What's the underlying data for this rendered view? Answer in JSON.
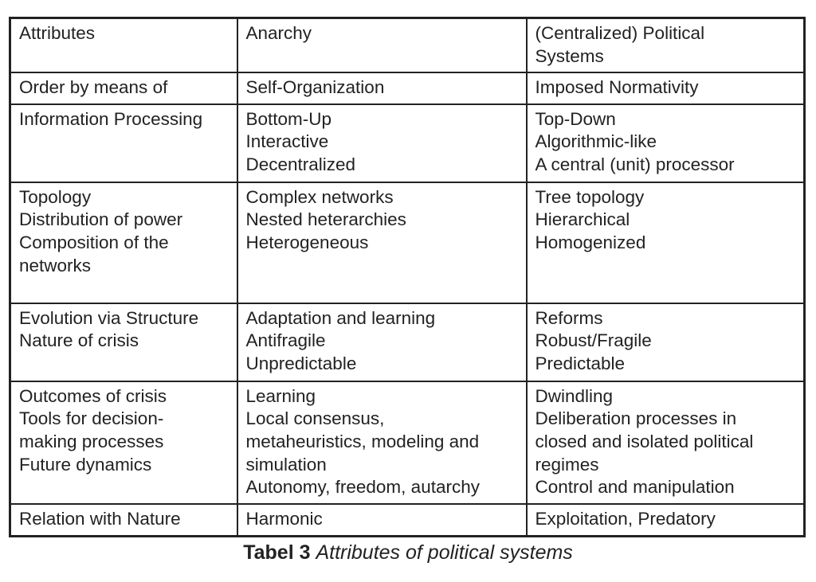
{
  "table": {
    "rows": [
      {
        "cells": [
          [
            "Attributes"
          ],
          [
            "Anarchy"
          ],
          [
            "(Centralized) Political",
            "Systems"
          ]
        ]
      },
      {
        "cells": [
          [
            "Order by means of"
          ],
          [
            "Self-Organization"
          ],
          [
            "Imposed Normativity"
          ]
        ]
      },
      {
        "cells": [
          [
            "Information Processing"
          ],
          [
            "Bottom-Up",
            "Interactive",
            "Decentralized"
          ],
          [
            "Top-Down",
            "Algorithmic-like",
            "A central (unit) processor"
          ]
        ]
      },
      {
        "cells": [
          [
            "Topology",
            "Distribution of power",
            "Composition of the",
            "networks"
          ],
          [
            "Complex networks",
            "Nested heterarchies",
            "Heterogeneous"
          ],
          [
            "Tree topology",
            "Hierarchical",
            "Homogenized"
          ]
        ]
      },
      {
        "cells": [
          [
            "Evolution via Structure",
            "Nature of crisis"
          ],
          [
            "Adaptation and learning",
            "Antifragile",
            "Unpredictable"
          ],
          [
            "Reforms",
            "Robust/Fragile",
            "Predictable"
          ]
        ]
      },
      {
        "cells": [
          [
            "Outcomes of crisis",
            "Tools for decision-",
            "making processes",
            "Future dynamics"
          ],
          [
            "Learning",
            "Local consensus,",
            "metaheuristics, modeling and",
            "simulation",
            "Autonomy, freedom, autarchy"
          ],
          [
            "Dwindling",
            "Deliberation processes in",
            "closed and isolated political",
            "regimes",
            "Control and manipulation"
          ]
        ]
      },
      {
        "cells": [
          [
            "Relation with Nature"
          ],
          [
            "Harmonic"
          ],
          [
            "Exploitation, Predatory"
          ]
        ]
      }
    ]
  },
  "caption": {
    "label": "Tabel 3",
    "text": "Attributes of political systems"
  }
}
